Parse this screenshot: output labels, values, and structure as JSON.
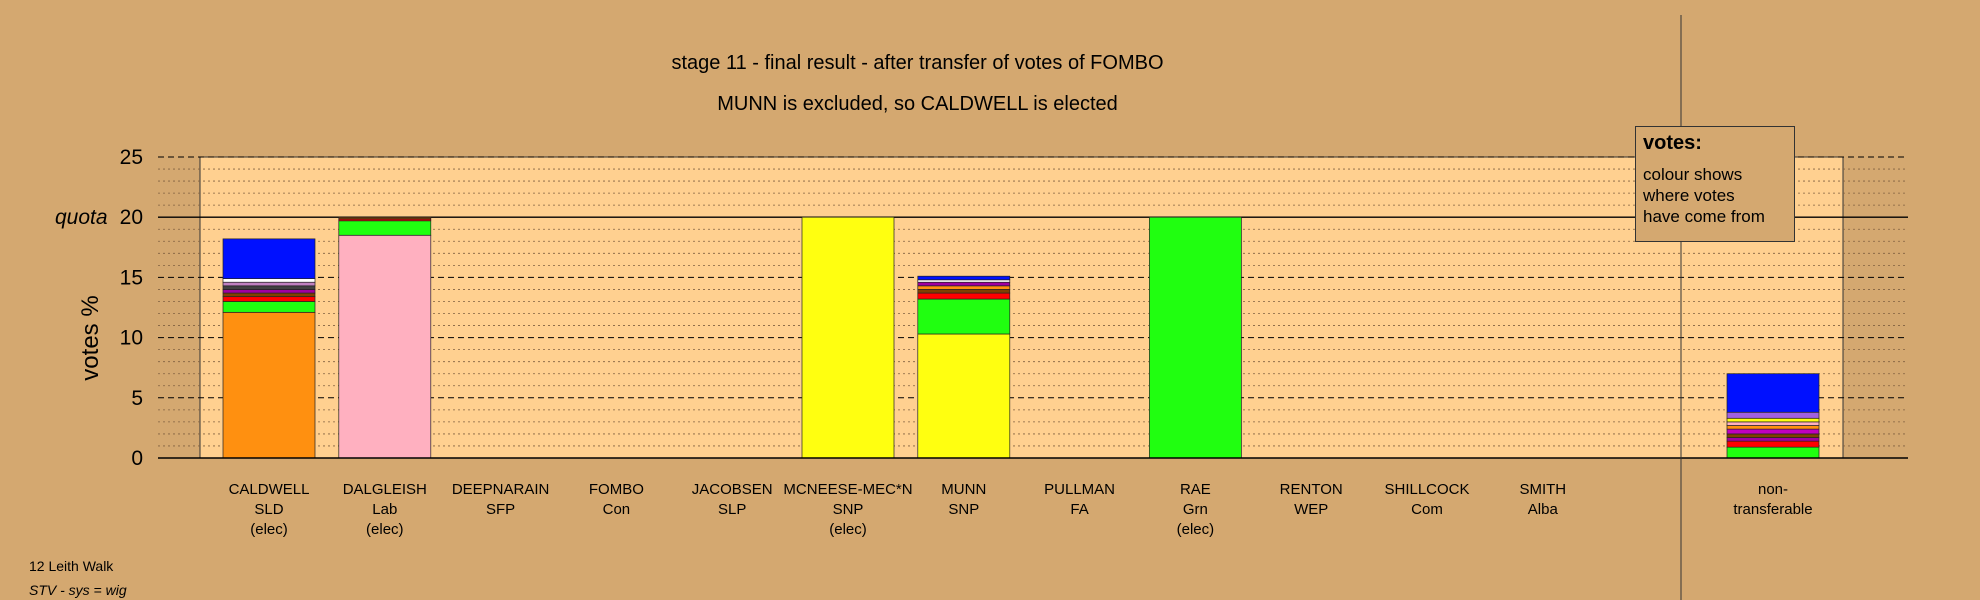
{
  "chart_data": {
    "type": "bar",
    "stacked": true,
    "title": "stage 11 - final result - after transfer of votes of FOMBO",
    "subtitle": "MUNN is excluded, so CALDWELL is elected",
    "ylabel": "votes %",
    "quota_label": "quota",
    "quota": 20,
    "ylim": [
      0,
      25
    ],
    "yticks": [
      0,
      5,
      10,
      15,
      20,
      25
    ],
    "categories": [
      {
        "name": "CALDWELL",
        "party": "SLD",
        "status": "(elec)"
      },
      {
        "name": "DALGLEISH",
        "party": "Lab",
        "status": "(elec)"
      },
      {
        "name": "DEEPNARAIN",
        "party": "SFP",
        "status": ""
      },
      {
        "name": "FOMBO",
        "party": "Con",
        "status": ""
      },
      {
        "name": "JACOBSEN",
        "party": "SLP",
        "status": ""
      },
      {
        "name": "MCNEESE-MEC*N",
        "party": "SNP",
        "status": "(elec)"
      },
      {
        "name": "MUNN",
        "party": "SNP",
        "status": ""
      },
      {
        "name": "PULLMAN",
        "party": "FA",
        "status": ""
      },
      {
        "name": "RAE",
        "party": "Grn",
        "status": "(elec)"
      },
      {
        "name": "RENTON",
        "party": "WEP",
        "status": ""
      },
      {
        "name": "SHILLCOCK",
        "party": "Com",
        "status": ""
      },
      {
        "name": "SMITH",
        "party": "Alba",
        "status": ""
      }
    ],
    "nontransferable_label": [
      "non-",
      "transferable"
    ],
    "stacks": [
      [
        {
          "value": 12.1,
          "color": "#ff9010"
        },
        {
          "value": 0.9,
          "color": "#20ff10"
        },
        {
          "value": 0.4,
          "color": "#ff0000"
        },
        {
          "value": 0.3,
          "color": "#804000"
        },
        {
          "value": 0.3,
          "color": "#a000a0"
        },
        {
          "value": 0.3,
          "color": "#404040"
        },
        {
          "value": 0.3,
          "color": "#c080c0"
        },
        {
          "value": 0.3,
          "color": "#ffffff"
        },
        {
          "value": 3.3,
          "color": "#0010ff"
        }
      ],
      [
        {
          "value": 18.5,
          "color": "#ffb0c0"
        },
        {
          "value": 1.2,
          "color": "#20ff10"
        },
        {
          "value": 0.15,
          "color": "#ff0000"
        },
        {
          "value": 0.15,
          "color": "#804000"
        }
      ],
      [],
      [],
      [],
      [
        {
          "value": 20.0,
          "color": "#ffff10"
        }
      ],
      [
        {
          "value": 10.3,
          "color": "#ffff10"
        },
        {
          "value": 2.9,
          "color": "#20ff10"
        },
        {
          "value": 0.5,
          "color": "#ff0000"
        },
        {
          "value": 0.3,
          "color": "#804000"
        },
        {
          "value": 0.3,
          "color": "#ff9010"
        },
        {
          "value": 0.3,
          "color": "#a000a0"
        },
        {
          "value": 0.2,
          "color": "#ffffff"
        },
        {
          "value": 0.3,
          "color": "#0010ff"
        }
      ],
      [],
      [
        {
          "value": 20.0,
          "color": "#20ff10"
        }
      ],
      [],
      [],
      []
    ],
    "nontransferable": [
      {
        "value": 0.9,
        "color": "#20ff10"
      },
      {
        "value": 0.5,
        "color": "#ff0000"
      },
      {
        "value": 0.3,
        "color": "#a000a0"
      },
      {
        "value": 0.3,
        "color": "#804000"
      },
      {
        "value": 0.4,
        "color": "#c000c0"
      },
      {
        "value": 0.3,
        "color": "#ff9010"
      },
      {
        "value": 0.3,
        "color": "#ffb0c0"
      },
      {
        "value": 0.3,
        "color": "#ffff10"
      },
      {
        "value": 0.5,
        "color": "#a060e0"
      },
      {
        "value": 3.2,
        "color": "#0010ff"
      }
    ],
    "grid": true,
    "colors": {
      "background": "#d4a870",
      "plot": "#ffd090"
    }
  },
  "legend": {
    "title": "votes:",
    "line1": "colour shows",
    "line2": "where votes",
    "line3": "have come from"
  },
  "footer": {
    "ward": "12 Leith Walk",
    "system": "STV - sys = wig"
  }
}
